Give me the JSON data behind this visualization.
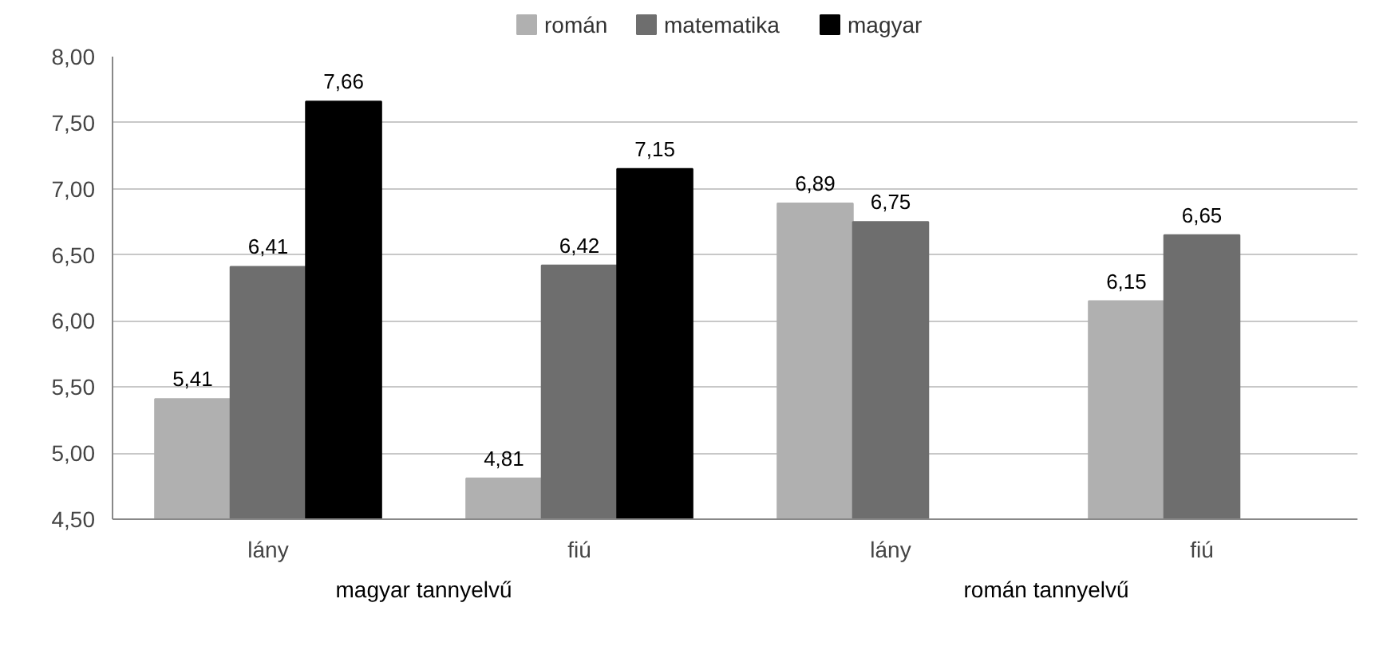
{
  "chart_data": {
    "type": "bar",
    "categories": [
      "lány",
      "fiú",
      "lány",
      "fiú"
    ],
    "series": [
      {
        "name": "román",
        "color": "#b0b0b0",
        "values": [
          5.41,
          4.81,
          6.89,
          6.15
        ],
        "value_labels": [
          "5,41",
          "4,81",
          "6,89",
          "6,15"
        ]
      },
      {
        "name": "matematika",
        "color": "#6e6e6e",
        "values": [
          6.41,
          6.42,
          6.75,
          6.65
        ],
        "value_labels": [
          "6,41",
          "6,42",
          "6,75",
          "6,65"
        ]
      },
      {
        "name": "magyar",
        "color": "#000000",
        "values": [
          7.66,
          7.15,
          null,
          null
        ],
        "value_labels": [
          "7,66",
          "7,15",
          null,
          null
        ]
      }
    ],
    "ylim": [
      4.5,
      8
    ],
    "yticks": [
      {
        "value": 4.5,
        "label": "4,50"
      },
      {
        "value": 5,
        "label": "5,00"
      },
      {
        "value": 5.5,
        "label": "5,50"
      },
      {
        "value": 6,
        "label": "6,00"
      },
      {
        "value": 6.5,
        "label": "6,50"
      },
      {
        "value": 7,
        "label": "7,00"
      },
      {
        "value": 7.5,
        "label": "7,50"
      },
      {
        "value": 8,
        "label": "8,00"
      }
    ],
    "grid": "y",
    "legend": "top",
    "annotations": [
      "magyar tannyelvű",
      "román tannyelvű"
    ]
  }
}
